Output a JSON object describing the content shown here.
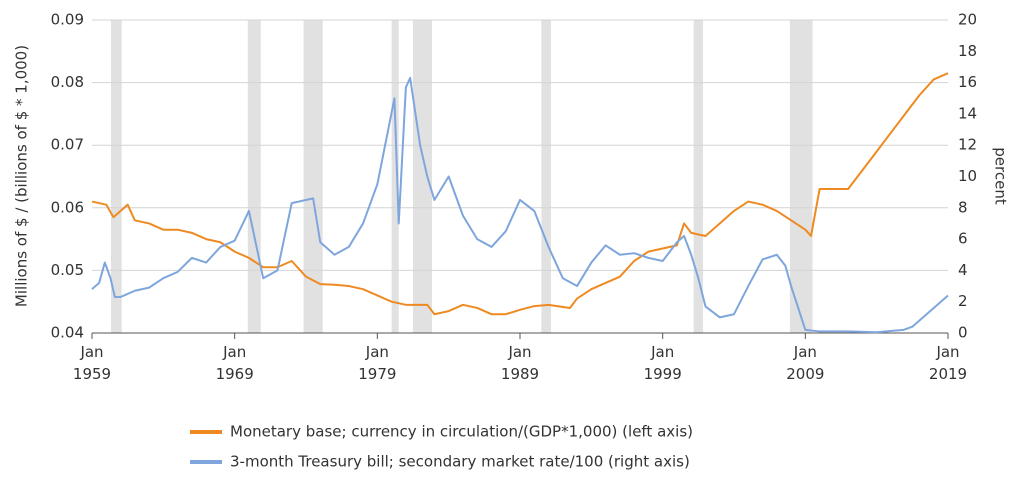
{
  "chart_data": {
    "type": "line",
    "y_label": "Millions of $ / (billions of $ * 1,000)",
    "y2_label": "percent",
    "xlim": [
      1959,
      2019.3
    ],
    "xticks": [
      {
        "value": 1959,
        "label": "Jan 1959"
      },
      {
        "value": 1969,
        "label": "Jan 1969"
      },
      {
        "value": 1979,
        "label": "Jan 1979"
      },
      {
        "value": 1989,
        "label": "Jan 1989"
      },
      {
        "value": 1999,
        "label": "Jan 1999"
      },
      {
        "value": 2009,
        "label": "Jan 2009"
      },
      {
        "value": 2019,
        "label": "Jan 2019"
      }
    ],
    "ylim": [
      0.04,
      0.09
    ],
    "yticks": [
      0.04,
      0.05,
      0.06,
      0.07,
      0.08,
      0.09
    ],
    "y2lim": [
      0,
      20
    ],
    "y2ticks": [
      0,
      2,
      4,
      6,
      8,
      10,
      12,
      14,
      16,
      18,
      20
    ],
    "grid": true,
    "legend": "bottom",
    "recession_color": "#e1e1e1",
    "recessions": [
      [
        1960.33,
        1961.08
      ],
      [
        1969.92,
        1970.83
      ],
      [
        1973.83,
        1975.17
      ],
      [
        1980.0,
        1980.5
      ],
      [
        1981.5,
        1982.83
      ],
      [
        1990.5,
        1991.17
      ],
      [
        2001.17,
        2001.83
      ],
      [
        2007.92,
        2009.5
      ]
    ],
    "series": [
      {
        "name": "Monetary base; currency in circulation/(GDP*1,000) (left axis)",
        "color": "#ef8a22",
        "x": [
          1959,
          1960,
          1960.5,
          1961.5,
          1962,
          1963,
          1964,
          1965,
          1966,
          1967,
          1968,
          1969,
          1970,
          1971,
          1972,
          1973,
          1974,
          1975,
          1976,
          1977,
          1978,
          1979,
          1980,
          1981,
          1982.5,
          1983,
          1984,
          1985,
          1986,
          1987,
          1988,
          1989,
          1990,
          1991,
          1992.5,
          1993,
          1994,
          1995,
          1996,
          1997,
          1998,
          1999,
          2000,
          2000.5,
          2001,
          2002,
          2003,
          2004,
          2005,
          2006,
          2007,
          2008,
          2009,
          2009.4,
          2010,
          2011,
          2012,
          2013,
          2014,
          2015,
          2016,
          2017,
          2018,
          2019
        ],
        "values": [
          0.061,
          0.0605,
          0.0585,
          0.0605,
          0.058,
          0.0575,
          0.0565,
          0.0565,
          0.056,
          0.055,
          0.0545,
          0.053,
          0.052,
          0.0505,
          0.0505,
          0.0515,
          0.049,
          0.0478,
          0.0477,
          0.0475,
          0.047,
          0.046,
          0.045,
          0.0445,
          0.0445,
          0.043,
          0.0435,
          0.0445,
          0.044,
          0.043,
          0.043,
          0.0437,
          0.0443,
          0.0445,
          0.044,
          0.0455,
          0.047,
          0.048,
          0.049,
          0.0515,
          0.053,
          0.0535,
          0.054,
          0.0575,
          0.056,
          0.0555,
          0.0575,
          0.0595,
          0.061,
          0.0605,
          0.0595,
          0.058,
          0.0565,
          0.0555,
          0.063,
          0.063,
          0.063,
          0.066,
          0.069,
          0.072,
          0.075,
          0.078,
          0.0805,
          0.0815
        ]
      },
      {
        "name": "3-month Treasury bill; secondary market rate/100 (right axis)",
        "color": "#7fa6dc",
        "axis": "y2",
        "x": [
          1959,
          1959.5,
          1959.9,
          1960.3,
          1960.6,
          1961,
          1962,
          1963,
          1964,
          1965,
          1966,
          1967,
          1968,
          1969,
          1970,
          1971,
          1972,
          1973,
          1974.5,
          1975,
          1976,
          1977,
          1978,
          1979,
          1980.2,
          1980.5,
          1981,
          1981.3,
          1982,
          1982.5,
          1983,
          1984,
          1985,
          1986,
          1987,
          1988,
          1989,
          1990,
          1991,
          1992,
          1993,
          1994,
          1995,
          1996,
          1997,
          1998,
          1999,
          2000,
          2000.5,
          2001,
          2001.5,
          2002,
          2003,
          2004,
          2005,
          2006,
          2007,
          2007.6,
          2008,
          2008.5,
          2009,
          2010,
          2012,
          2014,
          2015.9,
          2016.5,
          2017,
          2018,
          2019
        ],
        "values": [
          2.8,
          3.2,
          4.5,
          3.5,
          2.3,
          2.3,
          2.7,
          2.9,
          3.5,
          3.9,
          4.8,
          4.5,
          5.5,
          5.9,
          7.8,
          3.5,
          4.0,
          8.3,
          8.6,
          5.8,
          5.0,
          5.5,
          7.0,
          9.5,
          15.0,
          7.0,
          15.7,
          16.3,
          12.0,
          10.0,
          8.5,
          10.0,
          7.5,
          6.0,
          5.5,
          6.5,
          8.5,
          7.8,
          5.5,
          3.5,
          3.0,
          4.5,
          5.6,
          5.0,
          5.1,
          4.8,
          4.6,
          5.8,
          6.2,
          5.0,
          3.5,
          1.7,
          1.0,
          1.2,
          3.0,
          4.7,
          5.0,
          4.3,
          3.0,
          1.6,
          0.2,
          0.1,
          0.1,
          0.05,
          0.2,
          0.4,
          0.8,
          1.6,
          2.4
        ]
      }
    ]
  }
}
